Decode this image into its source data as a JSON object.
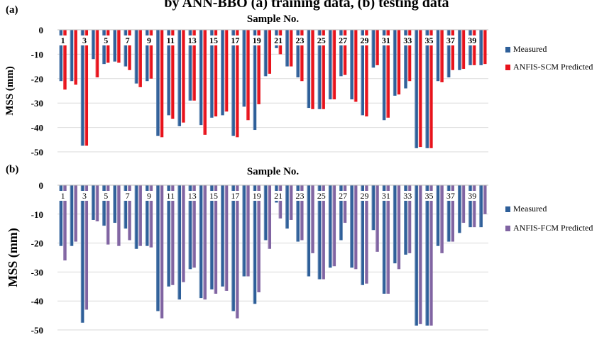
{
  "figure": {
    "caption_fragment": "by ANN-BBO (a) training data, (b) testing data"
  },
  "chart_data": [
    {
      "panel_label": "(a)",
      "type": "bar",
      "title": "Sample No.",
      "xlabel": "Sample No.",
      "ylabel": "MSS (mm)",
      "ylim": [
        -50,
        0
      ],
      "yticks": [
        0,
        -10,
        -20,
        -30,
        -40,
        -50
      ],
      "grid": true,
      "legend_position": "right",
      "categories": [
        1,
        2,
        3,
        4,
        5,
        6,
        7,
        8,
        9,
        10,
        11,
        12,
        13,
        14,
        15,
        16,
        17,
        18,
        19,
        20,
        21,
        22,
        23,
        24,
        25,
        26,
        27,
        28,
        29,
        30,
        31,
        32,
        33,
        34,
        35,
        36,
        37,
        38,
        39,
        40
      ],
      "category_labels": [
        1,
        3,
        5,
        7,
        9,
        11,
        13,
        15,
        17,
        19,
        21,
        23,
        25,
        27,
        29,
        31,
        33,
        35,
        37,
        39
      ],
      "series": [
        {
          "name": "Measured",
          "color": "#2e5f99",
          "values": [
            -21,
            -21,
            -47.5,
            -12,
            -14,
            -13,
            -15,
            -22,
            -21,
            -43.5,
            -35,
            -39.5,
            -29,
            -39,
            -36,
            -35,
            -43.5,
            -31.5,
            -41,
            -19,
            -7.5,
            -15,
            -19.5,
            -32,
            -32.5,
            -28.5,
            -19,
            -28.5,
            -35,
            -15.5,
            -37,
            -27,
            -24,
            -48.5,
            -48.5,
            -21,
            -19.5,
            -16.5,
            -14.5,
            -14.5
          ]
        },
        {
          "name": "ANFIS-SCM Predicted",
          "color": "#e8121b",
          "values": [
            -24.5,
            -22.5,
            -47.5,
            -19.5,
            -13.5,
            -13.5,
            -16.5,
            -23.5,
            -20,
            -44,
            -36.5,
            -38,
            -29,
            -43,
            -35.5,
            -33.5,
            -44,
            -37,
            -30.5,
            -18,
            -10,
            -15,
            -21,
            -32.5,
            -32.5,
            -28.5,
            -18.5,
            -29.5,
            -35.5,
            -14.5,
            -36,
            -26.5,
            -21,
            -48,
            -48.5,
            -21.5,
            -16.5,
            -16,
            -14.5,
            -14
          ]
        }
      ]
    },
    {
      "panel_label": "(b)",
      "type": "bar",
      "title": "Sample No.",
      "xlabel": "Sample No.",
      "ylabel": "MSS (mm)",
      "ylim": [
        -50,
        0
      ],
      "yticks": [
        0,
        -10,
        -20,
        -30,
        -40,
        -50
      ],
      "grid": true,
      "legend_position": "right",
      "categories": [
        1,
        2,
        3,
        4,
        5,
        6,
        7,
        8,
        9,
        10,
        11,
        12,
        13,
        14,
        15,
        16,
        17,
        18,
        19,
        20,
        21,
        22,
        23,
        24,
        25,
        26,
        27,
        28,
        29,
        30,
        31,
        32,
        33,
        34,
        35,
        36,
        37,
        38,
        39,
        40
      ],
      "category_labels": [
        1,
        3,
        5,
        7,
        9,
        11,
        13,
        15,
        17,
        19,
        21,
        23,
        25,
        27,
        29,
        31,
        33,
        35,
        37,
        39
      ],
      "series": [
        {
          "name": "Measured",
          "color": "#2e5f99",
          "values": [
            -21,
            -21,
            -47.5,
            -12,
            -14,
            -13,
            -15,
            -22,
            -21,
            -43.5,
            -35,
            -39.5,
            -29,
            -39,
            -36,
            -35,
            -43.5,
            -31.5,
            -41,
            -19,
            -6,
            -15,
            -19.5,
            -31.5,
            -32.5,
            -28.5,
            -19,
            -28.5,
            -34.5,
            -15.5,
            -37.5,
            -27,
            -24,
            -48.5,
            -48.5,
            -21,
            -19.5,
            -16.5,
            -14.5,
            -14.5
          ]
        },
        {
          "name": "ANFIS-FCM Predicted",
          "color": "#8064a2",
          "values": [
            -26,
            -19.5,
            -43,
            -12.5,
            -20.5,
            -21,
            -19,
            -21,
            -21.5,
            -46,
            -34.5,
            -33.5,
            -28.5,
            -39.5,
            -37.5,
            -36.5,
            -46,
            -31.5,
            -37,
            -22,
            -11.5,
            -12,
            -19,
            -23.5,
            -32.5,
            -28,
            -13,
            -29,
            -34,
            -23,
            -37.5,
            -29,
            -23.5,
            -48,
            -48.5,
            -23.5,
            -19.5,
            -13,
            -14.5,
            -10
          ]
        }
      ]
    }
  ]
}
